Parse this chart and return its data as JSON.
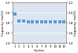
{
  "x": [
    1,
    2,
    3,
    4,
    5,
    6,
    7,
    8,
    9,
    10,
    11,
    12
  ],
  "y": [
    1.97,
    1.83,
    1.82,
    1.81,
    1.81,
    1.81,
    1.81,
    1.81,
    1.81,
    1.81,
    1.81,
    1.81
  ],
  "xlabel": "Cycles",
  "ylabel_left": "Capacity (wt%)",
  "ylabel_right": "Capacity (wt%)",
  "ylim": [
    1.4,
    2.2
  ],
  "xlim": [
    0.5,
    12.5
  ],
  "yticks": [
    1.4,
    1.6,
    1.8,
    2.0,
    2.2
  ],
  "xticks": [
    1,
    2,
    3,
    4,
    5,
    6,
    7,
    8,
    9,
    10,
    11,
    12
  ],
  "marker_color": "#5b9bd5",
  "marker": "s",
  "marker_size": 3.5,
  "bg_color": "#dce6f1",
  "fig_color": "#ffffff",
  "grid_color": "#ffffff",
  "label_fontsize": 3.2,
  "tick_fontsize": 2.8
}
